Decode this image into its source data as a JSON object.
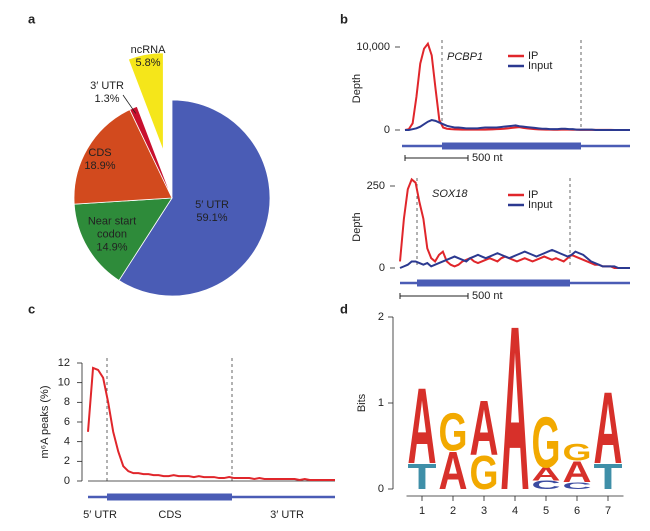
{
  "chart_data": [
    {
      "type": "pie",
      "panel": "a",
      "categories": [
        "5′ UTR",
        "Near start codon",
        "CDS",
        "3′ UTR",
        "ncRNA"
      ],
      "values": [
        59.1,
        14.9,
        18.9,
        1.3,
        5.8
      ],
      "value_labels": [
        "59.1%",
        "14.9%",
        "18.9%",
        "1.3%",
        "5.8%"
      ],
      "colors": [
        "#4a5cb5",
        "#2e8b3a",
        "#d24a1e",
        "#c8102e",
        "#f5e61a"
      ],
      "explode": [
        false,
        false,
        false,
        false,
        true
      ]
    },
    {
      "type": "line",
      "panel": "b",
      "title": "PCBP1",
      "ylabel": "Depth",
      "annotations": [
        "500 nt"
      ],
      "ylim": [
        0,
        10000
      ],
      "yticks": [
        0,
        {
          "value": 10000,
          "label": "10,000"
        }
      ],
      "series": [
        {
          "name": "IP",
          "color": "#e0262b",
          "values": [
            0,
            100,
            800,
            4000,
            8000,
            9800,
            10400,
            9000,
            5000,
            1200,
            300,
            150,
            100,
            80,
            60,
            50,
            40,
            50,
            60,
            50,
            40,
            50,
            60,
            80,
            100,
            120,
            150,
            200,
            250,
            300,
            350,
            250,
            200,
            150,
            100,
            80,
            60,
            50,
            40,
            30,
            30,
            40,
            50,
            40,
            30,
            30,
            20,
            30,
            20,
            20,
            10,
            20,
            10,
            10,
            10,
            0,
            0,
            0,
            0,
            0
          ]
        },
        {
          "name": "Input",
          "color": "#2b3990",
          "values": [
            0,
            0,
            100,
            200,
            400,
            700,
            1000,
            1200,
            1100,
            900,
            700,
            500,
            400,
            300,
            300,
            250,
            200,
            200,
            200,
            200,
            250,
            300,
            300,
            300,
            300,
            350,
            400,
            450,
            500,
            550,
            450,
            400,
            350,
            300,
            250,
            200,
            150,
            150,
            100,
            100,
            100,
            150,
            150,
            100,
            100,
            50,
            50,
            50,
            50,
            50,
            0,
            0,
            0,
            0,
            0,
            0,
            0,
            0,
            0,
            0
          ]
        }
      ]
    },
    {
      "type": "line",
      "title": "SOX18",
      "ylabel": "Depth",
      "annotations": [
        "500 nt"
      ],
      "ylim": [
        0,
        250
      ],
      "yticks": [
        0,
        250
      ],
      "series": [
        {
          "name": "IP",
          "color": "#e0262b",
          "values": [
            20,
            150,
            240,
            270,
            260,
            200,
            150,
            60,
            30,
            20,
            40,
            50,
            20,
            10,
            5,
            10,
            20,
            25,
            30,
            20,
            15,
            20,
            25,
            30,
            25,
            20,
            30,
            35,
            30,
            25,
            20,
            25,
            30,
            25,
            20,
            25,
            30,
            35,
            30,
            25,
            30,
            25,
            20,
            30,
            40,
            35,
            30,
            25,
            20,
            15,
            10,
            10,
            5,
            5,
            5,
            0,
            0,
            0,
            0,
            0
          ]
        },
        {
          "name": "Input",
          "color": "#2b3990",
          "values": [
            0,
            5,
            10,
            20,
            20,
            15,
            10,
            15,
            5,
            10,
            15,
            20,
            25,
            30,
            35,
            30,
            25,
            20,
            30,
            35,
            40,
            35,
            30,
            35,
            40,
            45,
            40,
            35,
            30,
            35,
            40,
            45,
            50,
            45,
            40,
            35,
            40,
            45,
            50,
            55,
            50,
            45,
            40,
            35,
            40,
            50,
            45,
            40,
            30,
            20,
            15,
            10,
            5,
            5,
            5,
            5,
            0,
            0,
            0,
            0
          ]
        }
      ]
    },
    {
      "type": "line",
      "panel": "c",
      "ylabel": "m⁶A peaks (%)",
      "annotations": [
        "5′ UTR",
        "CDS",
        "3′ UTR"
      ],
      "ylim": [
        0,
        12
      ],
      "yticks": [
        0,
        2,
        4,
        6,
        8,
        10,
        12
      ],
      "series": [
        {
          "color": "#e0262b",
          "values": [
            5,
            11.5,
            11.3,
            10.5,
            8,
            5,
            3,
            1.5,
            1,
            0.8,
            0.8,
            0.7,
            0.7,
            0.6,
            0.6,
            0.5,
            0.5,
            0.6,
            0.5,
            0.5,
            0.5,
            0.4,
            0.5,
            0.4,
            0.4,
            0.4,
            0.3,
            0.3,
            0.4,
            0.3,
            0.3,
            0.3,
            0.3,
            0.2,
            0.3,
            0.2,
            0.2,
            0.2,
            0.2,
            0.2,
            0.2,
            0.2,
            0.1,
            0.2,
            0.1,
            0.1,
            0.1,
            0.1,
            0.1,
            0.1
          ]
        }
      ]
    },
    {
      "type": "logo",
      "panel": "d",
      "ylabel": "Bits",
      "ylim": [
        0,
        2
      ],
      "yticks": [
        0,
        1,
        2
      ],
      "xlim": [
        0.5,
        7.5
      ],
      "xticks": [
        1,
        2,
        3,
        4,
        5,
        6,
        7
      ],
      "colors": {
        "A": "#d7302a",
        "G": "#f2a900",
        "C": "#3b4ba0",
        "T": "#3f8fa8"
      },
      "positions": [
        {
          "x": 1,
          "letters": [
            {
              "base": "T",
              "bits": 0.3
            },
            {
              "base": "A",
              "bits": 0.9
            }
          ]
        },
        {
          "x": 2,
          "letters": [
            {
              "base": "A",
              "bits": 0.45
            },
            {
              "base": "G",
              "bits": 0.45
            }
          ]
        },
        {
          "x": 3,
          "letters": [
            {
              "base": "G",
              "bits": 0.4
            },
            {
              "base": "A",
              "bits": 0.65
            }
          ]
        },
        {
          "x": 4,
          "letters": [
            {
              "base": "A",
              "bits": 1.95
            }
          ]
        },
        {
          "x": 5,
          "letters": [
            {
              "base": "C",
              "bits": 0.1
            },
            {
              "base": "A",
              "bits": 0.15
            },
            {
              "base": "G",
              "bits": 0.6
            }
          ]
        },
        {
          "x": 6,
          "letters": [
            {
              "base": "C",
              "bits": 0.08
            },
            {
              "base": "A",
              "bits": 0.25
            },
            {
              "base": "G",
              "bits": 0.2
            }
          ]
        },
        {
          "x": 7,
          "letters": [
            {
              "base": "T",
              "bits": 0.3
            },
            {
              "base": "A",
              "bits": 0.85
            }
          ]
        }
      ]
    }
  ]
}
